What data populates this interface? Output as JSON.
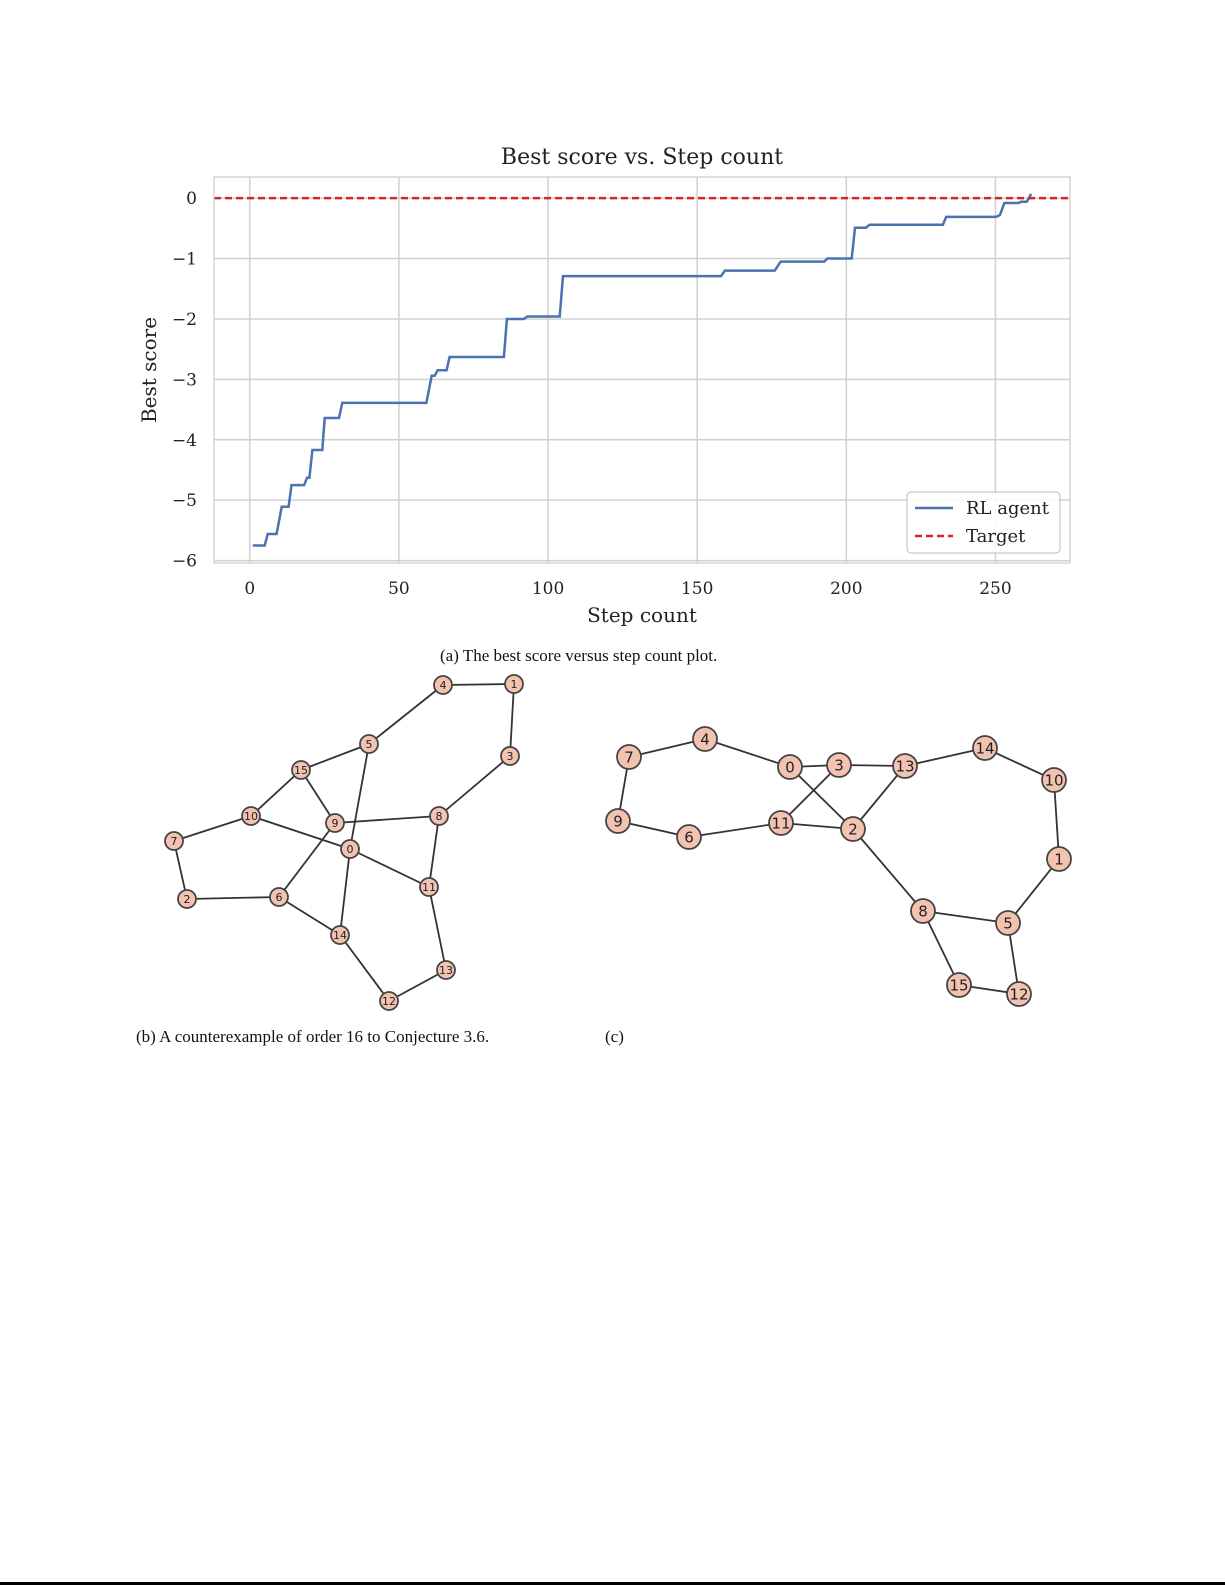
{
  "chart_data": {
    "type": "line",
    "title": "Best score vs. Step count",
    "xlabel": "Step count",
    "ylabel": "Best score",
    "xlim": [
      -12,
      275
    ],
    "ylim": [
      -6.04,
      0.35
    ],
    "xticks": [
      0,
      50,
      100,
      150,
      200,
      250
    ],
    "yticks": [
      0,
      -1,
      -2,
      -3,
      -4,
      -5,
      -6
    ],
    "grid": true,
    "legend_position": "lower-right",
    "series": [
      {
        "name": "RL agent",
        "color": "#4c72b0",
        "style": "solid",
        "x": [
          1,
          5,
          6,
          9,
          10.7,
          13,
          14,
          18.2,
          19.2,
          20,
          21,
          24.3,
          25.1,
          29.9,
          31,
          59.2,
          61,
          62,
          63,
          66,
          67,
          85.2,
          86.2,
          91.9,
          93,
          103.9,
          105,
          158,
          159.3,
          176,
          178,
          192.6,
          193.7,
          201.8,
          202.9,
          206.6,
          207.8,
          232.4,
          233.5,
          250.2,
          251.5,
          253,
          257.8,
          258.5,
          260.5,
          262
        ],
        "y": [
          -5.75,
          -5.75,
          -5.56,
          -5.56,
          -5.11,
          -5.11,
          -4.75,
          -4.75,
          -4.63,
          -4.63,
          -4.17,
          -4.17,
          -3.64,
          -3.64,
          -3.39,
          -3.39,
          -2.94,
          -2.94,
          -2.85,
          -2.85,
          -2.63,
          -2.63,
          -2.0,
          -2.0,
          -1.96,
          -1.96,
          -1.29,
          -1.29,
          -1.2,
          -1.2,
          -1.05,
          -1.05,
          -1.0,
          -1.0,
          -0.49,
          -0.49,
          -0.44,
          -0.44,
          -0.31,
          -0.31,
          -0.28,
          -0.08,
          -0.08,
          -0.06,
          -0.06,
          0.07
        ]
      },
      {
        "name": "Target",
        "color": "#d62728",
        "style": "dashed",
        "x": [
          -12,
          275
        ],
        "y": [
          0,
          0
        ]
      }
    ]
  },
  "captions": {
    "a": "(a) The best score versus step count plot.",
    "b": "(b) A counterexample of order 16 to Conjecture 3.6.",
    "c": "(c)"
  },
  "graphs": {
    "b": {
      "nodes": [
        "0",
        "1",
        "2",
        "3",
        "4",
        "5",
        "6",
        "7",
        "8",
        "9",
        "10",
        "11",
        "12",
        "13",
        "14",
        "15"
      ],
      "edges": [
        [
          4,
          1
        ],
        [
          1,
          3
        ],
        [
          4,
          5
        ],
        [
          5,
          15
        ],
        [
          5,
          0
        ],
        [
          3,
          8
        ],
        [
          15,
          10
        ],
        [
          15,
          9
        ],
        [
          9,
          8
        ],
        [
          9,
          6
        ],
        [
          10,
          7
        ],
        [
          10,
          0
        ],
        [
          7,
          2
        ],
        [
          2,
          6
        ],
        [
          6,
          14
        ],
        [
          0,
          14
        ],
        [
          0,
          11
        ],
        [
          8,
          11
        ],
        [
          11,
          13
        ],
        [
          14,
          12
        ],
        [
          13,
          12
        ]
      ]
    },
    "c": {
      "nodes": [
        "0",
        "1",
        "2",
        "3",
        "4",
        "5",
        "6",
        "7",
        "8",
        "9",
        "10",
        "11",
        "12",
        "13",
        "14",
        "15"
      ],
      "edges": [
        [
          7,
          4
        ],
        [
          4,
          0
        ],
        [
          0,
          3
        ],
        [
          0,
          2
        ],
        [
          3,
          13
        ],
        [
          3,
          11
        ],
        [
          13,
          14
        ],
        [
          13,
          2
        ],
        [
          14,
          10
        ],
        [
          10,
          1
        ],
        [
          1,
          5
        ],
        [
          7,
          9
        ],
        [
          9,
          6
        ],
        [
          6,
          11
        ],
        [
          11,
          2
        ],
        [
          2,
          8
        ],
        [
          8,
          5
        ],
        [
          8,
          15
        ],
        [
          5,
          12
        ],
        [
          15,
          12
        ]
      ]
    },
    "node_fill": "#f4c2b0",
    "node_stroke": "#444444"
  }
}
